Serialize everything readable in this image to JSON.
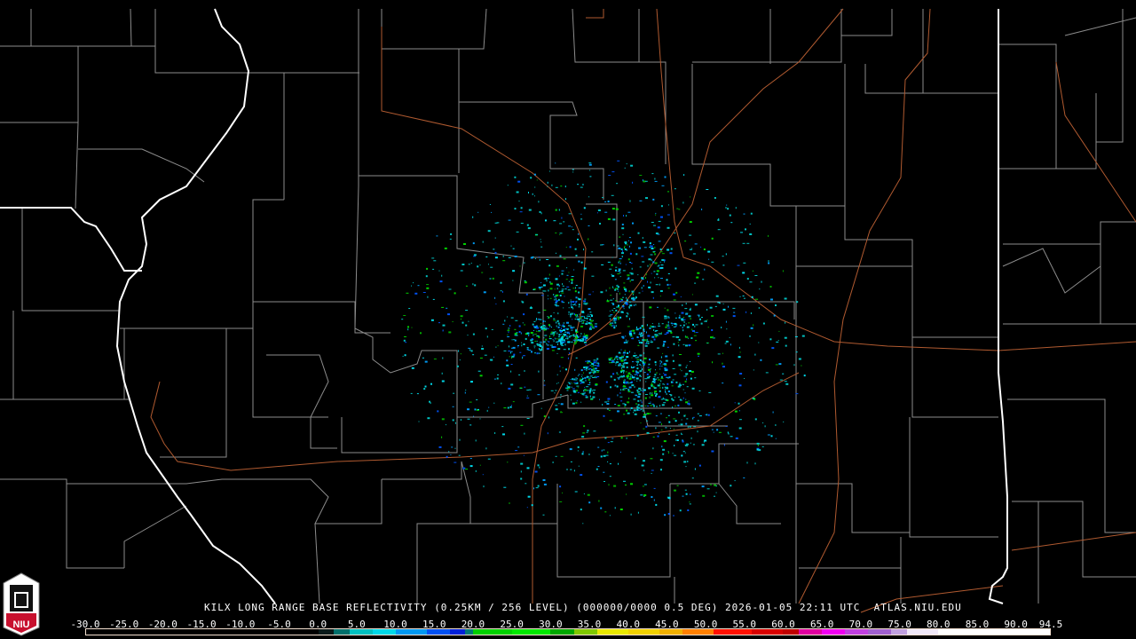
{
  "caption": {
    "radar": "KILX",
    "product": "LONG RANGE BASE REFLECTIVITY",
    "resolution": "(0.25KM / 256 LEVEL)",
    "scan": "(000000/0000 0.5 DEG)",
    "datetime": "2026-01-05 22:11 UTC",
    "source": "ATLAS.NIU.EDU"
  },
  "logo": {
    "text": "NIU"
  },
  "colorbar": {
    "ticks": [
      "-30.0",
      "-25.0",
      "-20.0",
      "-15.0",
      "-10.0",
      "-5.0",
      "0.0",
      "5.0",
      "10.0",
      "15.0",
      "20.0",
      "25.0",
      "30.0",
      "35.0",
      "40.0",
      "45.0",
      "50.0",
      "55.0",
      "60.0",
      "65.0",
      "70.0",
      "75.0",
      "80.0",
      "85.0",
      "90.0",
      "94.5"
    ],
    "range": [
      -30,
      94.5
    ],
    "colors": [
      {
        "from": -30,
        "color": "#000000"
      },
      {
        "from": 0,
        "color": "#0a1a1a"
      },
      {
        "from": 2,
        "color": "#00706c"
      },
      {
        "from": 4,
        "color": "#00c0c0"
      },
      {
        "from": 7,
        "color": "#00d8e8"
      },
      {
        "from": 10,
        "color": "#0098f0"
      },
      {
        "from": 14,
        "color": "#0050f0"
      },
      {
        "from": 17,
        "color": "#0020d8"
      },
      {
        "from": 19,
        "color": "#007878"
      },
      {
        "from": 20,
        "color": "#00d000"
      },
      {
        "from": 25,
        "color": "#00e800"
      },
      {
        "from": 30,
        "color": "#00a800"
      },
      {
        "from": 33,
        "color": "#80c800"
      },
      {
        "from": 36,
        "color": "#e8e800"
      },
      {
        "from": 40,
        "color": "#f0d000"
      },
      {
        "from": 44,
        "color": "#f0b000"
      },
      {
        "from": 47,
        "color": "#ff8000"
      },
      {
        "from": 51,
        "color": "#ff1000"
      },
      {
        "from": 56,
        "color": "#d80000"
      },
      {
        "from": 60,
        "color": "#c00000"
      },
      {
        "from": 62,
        "color": "#e000a0"
      },
      {
        "from": 65,
        "color": "#f000f0"
      },
      {
        "from": 68,
        "color": "#c040e0"
      },
      {
        "from": 71,
        "color": "#a060d0"
      },
      {
        "from": 74,
        "color": "#c0a0e0"
      },
      {
        "from": 76,
        "color": "#f0e8f8"
      },
      {
        "from": 80,
        "color": "#ffffff"
      }
    ]
  },
  "map_colors": {
    "county": "#8c8c8c",
    "state": "#ffffff",
    "road": "#b05a30"
  },
  "echo_colors": [
    "#00c0c0",
    "#00d8e8",
    "#0098f0",
    "#0050f0",
    "#00d000",
    "#00a800"
  ]
}
